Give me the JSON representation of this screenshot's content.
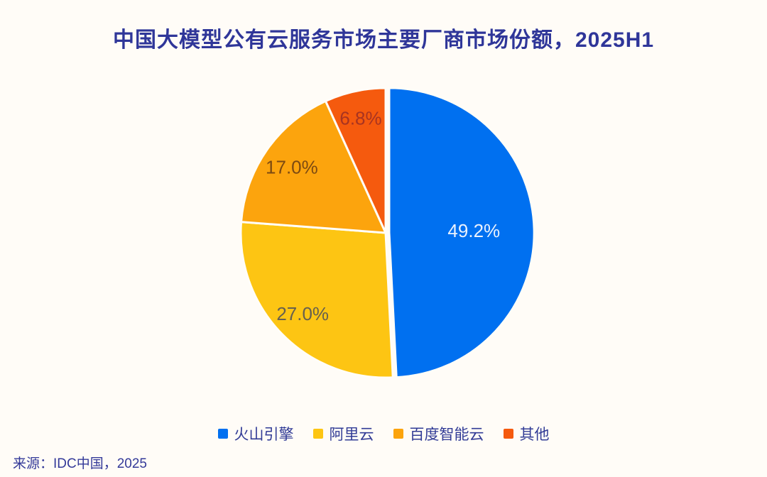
{
  "page": {
    "background_color": "#FFFCF7",
    "title_color": "#2F3699",
    "legend_text_color": "#313B96",
    "source_text_color": "#343A99"
  },
  "title": "中国大模型公有云服务市场主要厂商市场份额，2025H1",
  "source": "来源：IDC中国，2025",
  "chart_data": {
    "type": "pie",
    "title": "中国大模型公有云服务市场主要厂商市场份额，2025H1",
    "source": "来源：IDC中国，2025",
    "start_angle_deg": 0,
    "direction": "clockwise",
    "legend_position": "bottom",
    "series": [
      {
        "name": "火山引擎",
        "value": 49.2,
        "label": "49.2%",
        "color": "#0070F0",
        "label_color": "#EAF2FD"
      },
      {
        "name": "阿里云",
        "value": 27.0,
        "label": "27.0%",
        "color": "#FDC513",
        "label_color": "#67604F"
      },
      {
        "name": "百度智能云",
        "value": 17.0,
        "label": "17.0%",
        "color": "#FCA40D",
        "label_color": "#7C4A12"
      },
      {
        "name": "其他",
        "value": 6.8,
        "label": "6.8%",
        "color": "#F55A0E",
        "label_color": "#A83421"
      }
    ]
  }
}
